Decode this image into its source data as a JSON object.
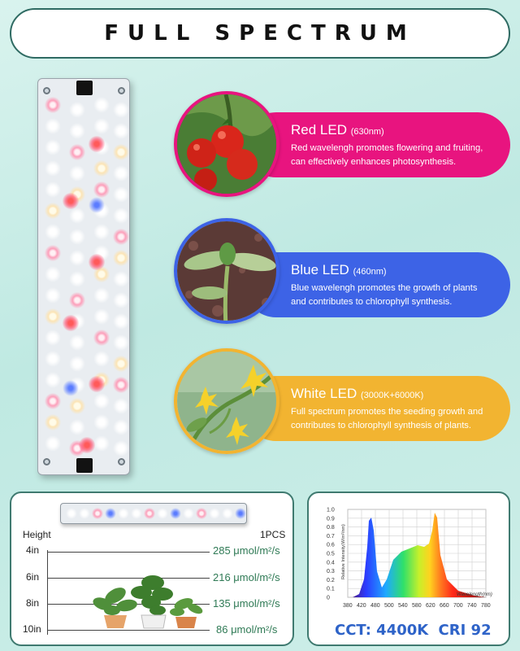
{
  "title": "FULL SPECTRUM",
  "cards": [
    {
      "name": "Red LED",
      "nm": "(630nm)",
      "desc1": "Red wavelengh promotes flowering and fruiting,",
      "desc2": "can effectively enhances photosynthesis.",
      "color": "#e8147f"
    },
    {
      "name": "Blue LED",
      "nm": "(460nm)",
      "desc1": "Blue wavelengh promotes the growth of plants",
      "desc2": "and contributes to chlorophyll synthesis.",
      "color": "#3d63e6"
    },
    {
      "name": "White LED",
      "nm": "(3000K+6000K)",
      "desc1": "Full spectrum promotes the seeding growth and",
      "desc2": "contributes to chlorophyll synthesis of plants.",
      "color": "#f2b431"
    }
  ],
  "ppfd": {
    "height_label": "Height",
    "count_label": "1PCS",
    "rows": [
      {
        "height": "4in",
        "value": "285 μmol/m²/s"
      },
      {
        "height": "6in",
        "value": "216 μmol/m²/s"
      },
      {
        "height": "8in",
        "value": "135 μmol/m²/s"
      },
      {
        "height": "10in",
        "value": "86 μmol/m²/s"
      }
    ]
  },
  "spectrum": {
    "y_axis_label": "Relative Intensity(W/m²/nm)",
    "x_axis_label": "Wavelength(nm)",
    "y_ticks": [
      "1.0",
      "0.9",
      "0.8",
      "0.7",
      "0.6",
      "0.5",
      "0.4",
      "0.3",
      "0.2",
      "0.1",
      "0"
    ],
    "x_ticks": [
      "380",
      "420",
      "480",
      "500",
      "540",
      "580",
      "620",
      "660",
      "700",
      "740",
      "780"
    ],
    "cct": "CCT: 4400K",
    "cri": "CRI 92"
  },
  "colors": {
    "accent_border": "#3f7a70",
    "value_green": "#2f7a55",
    "cct_blue": "#2e63c8"
  }
}
